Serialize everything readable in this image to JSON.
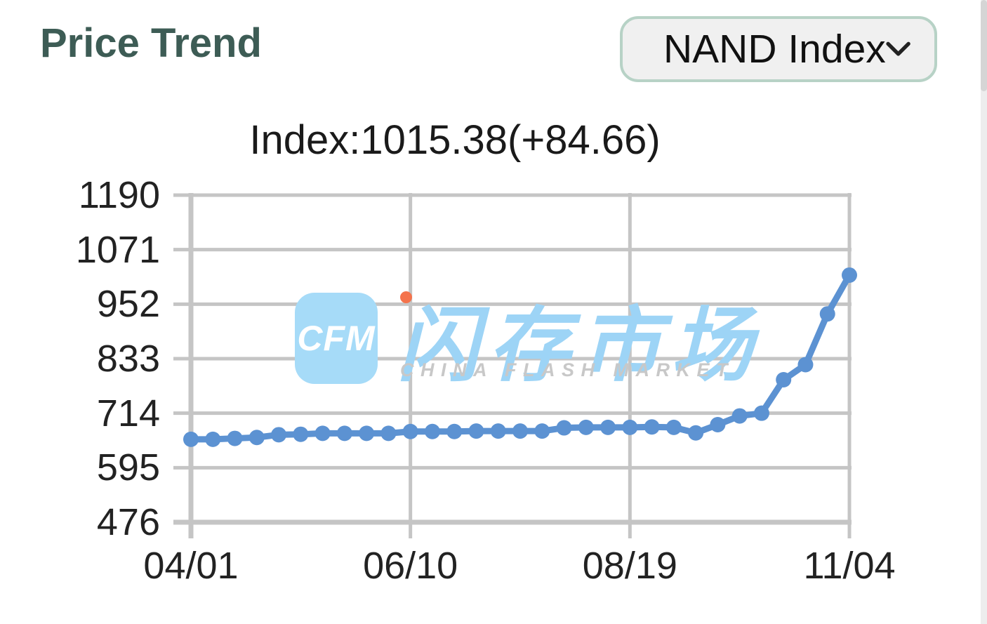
{
  "header": {
    "title": "Price Trend",
    "index_selector": {
      "selected": "NAND Index"
    }
  },
  "chart": {
    "subtitle": "Index:1015.38(+84.66)"
  },
  "chart_data": {
    "type": "line",
    "title": "Index:1015.38(+84.66)",
    "series_name": "NAND Index",
    "current_value": 1015.38,
    "change": "+84.66",
    "values": [
      657,
      657,
      659,
      661,
      667,
      668,
      670,
      670,
      670,
      670,
      674,
      674,
      674,
      675,
      675,
      675,
      675,
      682,
      683,
      683,
      683,
      684,
      683,
      671,
      689,
      708,
      714,
      787,
      820,
      930.72,
      1015.38
    ],
    "x_tick_labels": [
      "04/01",
      "06/10",
      "08/19",
      "11/04"
    ],
    "x_tick_indices": [
      0,
      10,
      20,
      30
    ],
    "y_ticks": [
      476,
      595,
      714,
      833,
      952,
      1071,
      1190
    ],
    "ylim": [
      476,
      1190
    ],
    "grid": true,
    "legend": "none",
    "line_color": "#5c92d2",
    "grid_color": "#c5c5c5"
  },
  "watermark": {
    "logo_text": "CFM",
    "cn_text": "闪存市场",
    "en_text": "CHINA FLASH MARKET"
  },
  "colors": {
    "title_text": "#3d5c55",
    "selector_border": "#b7d2c6",
    "selector_bg": "#f0f0f0",
    "watermark_blue": "#9dd4f6",
    "watermark_orange": "#f4734c"
  }
}
